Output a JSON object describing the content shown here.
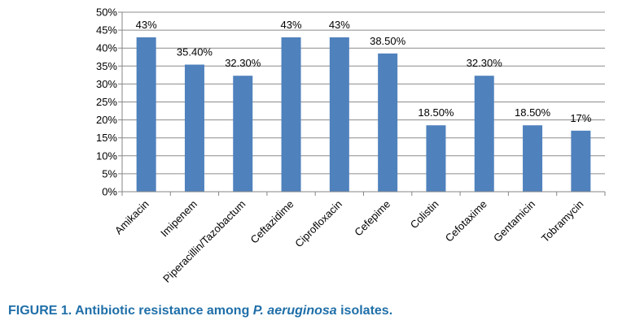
{
  "caption": {
    "label": "FIGURE 1.",
    "text_before": " Antibiotic resistance among ",
    "italic": "P. aeruginosa",
    "text_after": " isolates."
  },
  "chart_data": {
    "type": "bar",
    "categories": [
      "Amikacin",
      "Imipenem",
      "Piperacillin/Tazobactum",
      "Ceftazidime",
      "Ciprofloxacin",
      "Cefepime",
      "Colistin",
      "Cefotaxime",
      "Gentamicin",
      "Tobramycin"
    ],
    "values": [
      43,
      35.4,
      32.3,
      43,
      43,
      38.5,
      18.5,
      32.3,
      18.5,
      17
    ],
    "data_labels": [
      "43%",
      "35.40%",
      "32.30%",
      "43%",
      "43%",
      "38.50%",
      "18.50%",
      "32.30%",
      "18.50%",
      "17%"
    ],
    "y_ticks": [
      "0%",
      "5%",
      "10%",
      "15%",
      "20%",
      "25%",
      "30%",
      "35%",
      "40%",
      "45%",
      "50%"
    ],
    "ylim": [
      0,
      50
    ],
    "grid": true,
    "colors": {
      "bar": "#4f81bd",
      "grid": "#8c8c8c",
      "axis": "#868686"
    }
  }
}
